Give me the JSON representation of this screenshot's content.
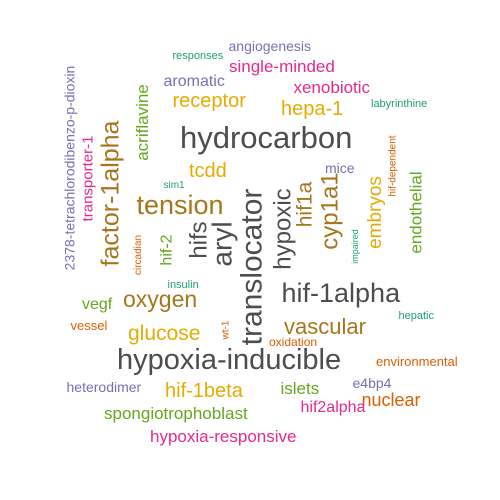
{
  "colors": {
    "dark_gray": "#4d4d4d",
    "brown": "#a6761d",
    "gold": "#e6ab02",
    "purple": "#7570b3",
    "green": "#66a61e",
    "magenta": "#e7298a",
    "orange": "#d95f02",
    "teal": "#1b9e77"
  },
  "words": [
    {
      "text": "hydrocarbon",
      "color": "#4d4d4d"
    },
    {
      "text": "hypoxia-inducible",
      "color": "#4d4d4d"
    },
    {
      "text": "translocator",
      "color": "#4d4d4d"
    },
    {
      "text": "hif-1alpha",
      "color": "#4d4d4d"
    },
    {
      "text": "aryl",
      "color": "#4d4d4d"
    },
    {
      "text": "hypoxic",
      "color": "#4d4d4d"
    },
    {
      "text": "hifs",
      "color": "#4d4d4d"
    },
    {
      "text": "tension",
      "color": "#a6761d"
    },
    {
      "text": "factor-1alpha",
      "color": "#a6761d"
    },
    {
      "text": "oxygen",
      "color": "#a6761d"
    },
    {
      "text": "vascular",
      "color": "#a6761d"
    },
    {
      "text": "cyp1a1",
      "color": "#a6761d"
    },
    {
      "text": "hif1a",
      "color": "#a6761d"
    },
    {
      "text": "receptor",
      "color": "#e6ab02"
    },
    {
      "text": "hepa-1",
      "color": "#e6ab02"
    },
    {
      "text": "tcdd",
      "color": "#e6ab02"
    },
    {
      "text": "glucose",
      "color": "#e6ab02"
    },
    {
      "text": "hif-1beta",
      "color": "#e6ab02"
    },
    {
      "text": "embryos",
      "color": "#e6ab02"
    },
    {
      "text": "nuclear",
      "color": "#d95f02"
    },
    {
      "text": "angiogenesis",
      "color": "#7570b3"
    },
    {
      "text": "aromatic",
      "color": "#7570b3"
    },
    {
      "text": "mice",
      "color": "#7570b3"
    },
    {
      "text": "heterodimer",
      "color": "#7570b3"
    },
    {
      "text": "e4bp4",
      "color": "#7570b3"
    },
    {
      "text": "2378-tetrachlorodibenzo-p-dioxin",
      "color": "#7570b3"
    },
    {
      "text": "single-minded",
      "color": "#e7298a"
    },
    {
      "text": "xenobiotic",
      "color": "#e7298a"
    },
    {
      "text": "transporter-1",
      "color": "#e7298a"
    },
    {
      "text": "hif2alpha",
      "color": "#e7298a"
    },
    {
      "text": "hypoxia-responsive",
      "color": "#e7298a"
    },
    {
      "text": "acriflavine",
      "color": "#66a61e"
    },
    {
      "text": "hif-2",
      "color": "#66a61e"
    },
    {
      "text": "endothelial",
      "color": "#66a61e"
    },
    {
      "text": "vegf",
      "color": "#66a61e"
    },
    {
      "text": "islets",
      "color": "#66a61e"
    },
    {
      "text": "spongiotrophoblast",
      "color": "#66a61e"
    },
    {
      "text": "responses",
      "color": "#1b9e77"
    },
    {
      "text": "labyrinthine",
      "color": "#1b9e77"
    },
    {
      "text": "sim1",
      "color": "#1b9e77"
    },
    {
      "text": "insulin",
      "color": "#1b9e77"
    },
    {
      "text": "impaired",
      "color": "#1b9e77"
    },
    {
      "text": "hepatic",
      "color": "#1b9e77"
    },
    {
      "text": "circadian",
      "color": "#d95f02"
    },
    {
      "text": "hif-dependent",
      "color": "#d95f02"
    },
    {
      "text": "vessel",
      "color": "#d95f02"
    },
    {
      "text": "wt-1",
      "color": "#d95f02"
    },
    {
      "text": "oxidation",
      "color": "#d95f02"
    },
    {
      "text": "environmental",
      "color": "#d95f02"
    }
  ]
}
